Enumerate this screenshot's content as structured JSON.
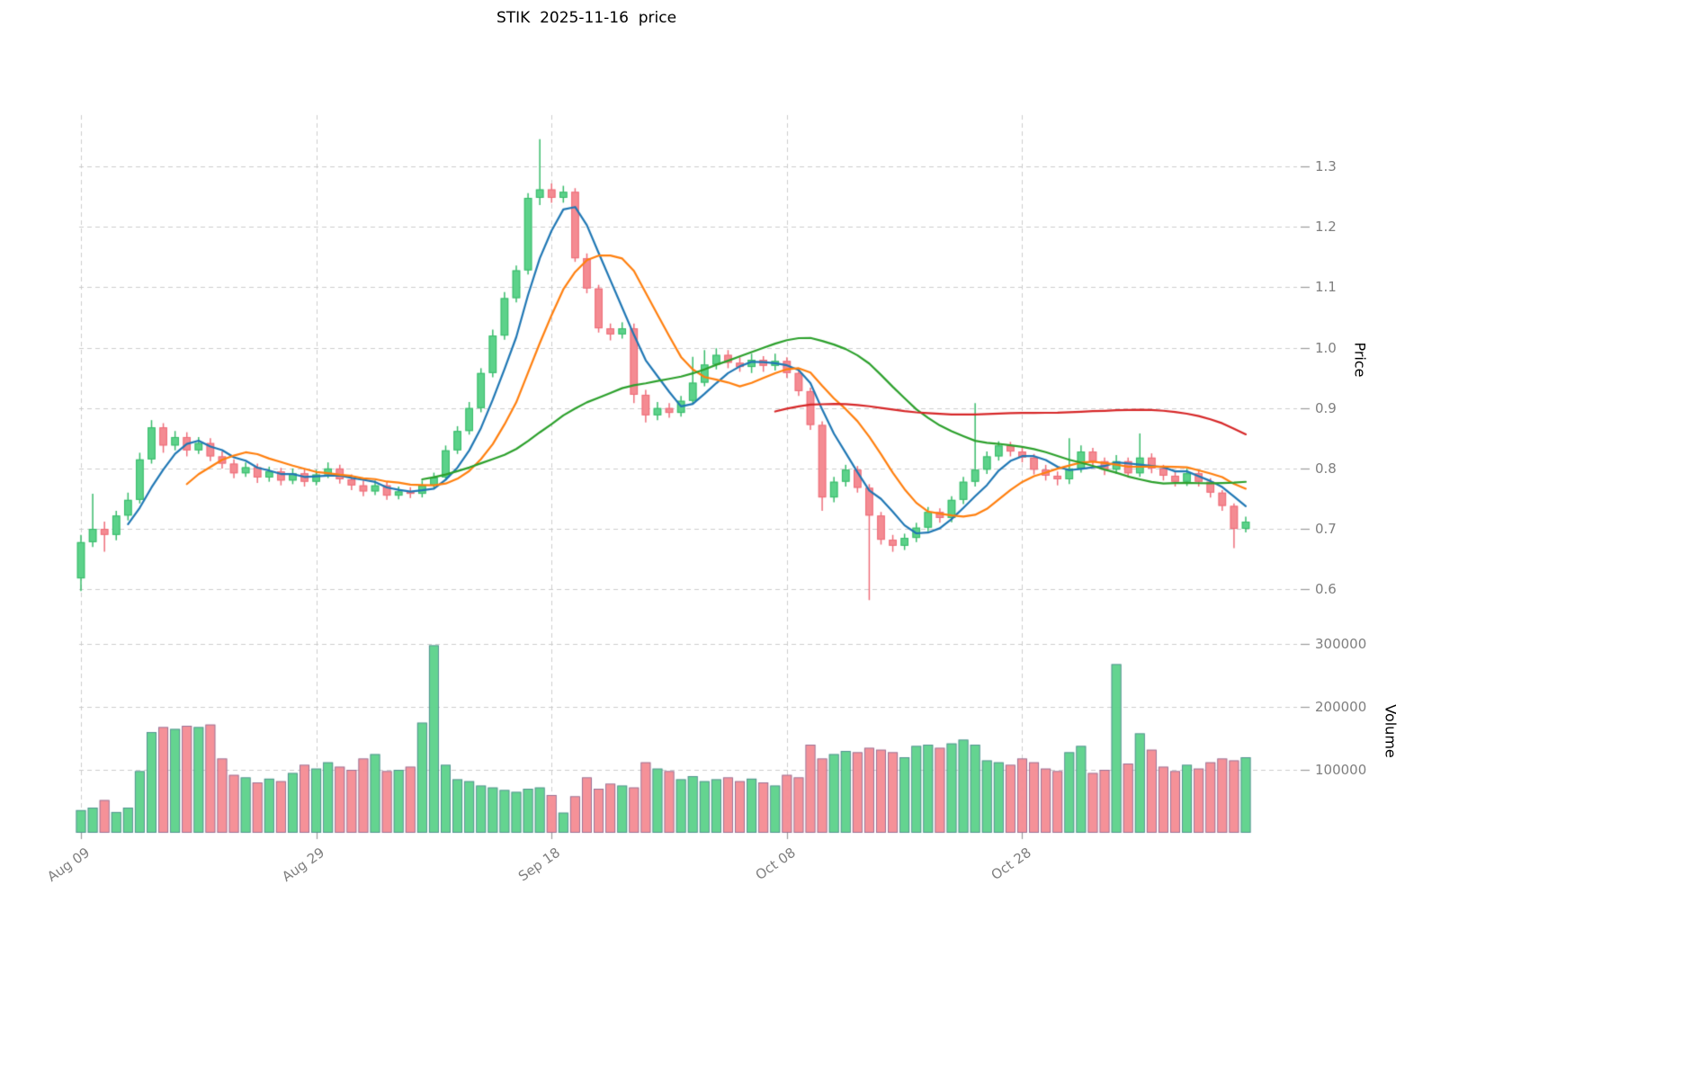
{
  "title": "STIK  2025-11-16  price",
  "axes": {
    "price_label": "Price",
    "volume_label": "Volume",
    "price_ticks": [
      "0.6",
      "0.7",
      "0.8",
      "0.9",
      "1.0",
      "1.1",
      "1.2",
      "1.3"
    ],
    "price_tick_values": [
      0.6,
      0.7,
      0.8,
      0.9,
      1.0,
      1.1,
      1.2,
      1.3
    ],
    "volume_ticks": [
      "100000",
      "200000",
      "300000"
    ],
    "volume_tick_values": [
      100000,
      200000,
      300000
    ],
    "x_ticks": [
      "Aug 09",
      "Aug 29",
      "Sep 18",
      "Oct 08",
      "Oct 28"
    ],
    "x_tick_days": [
      0,
      20,
      40,
      60,
      80
    ]
  },
  "chart_data": {
    "type": "candlestick",
    "panels": [
      "price_with_moving_averages",
      "volume"
    ],
    "dates": {
      "start": "2025-08-09",
      "end": "2025-11-16",
      "freq": "daily",
      "count": 100
    },
    "open": [
      0.618,
      0.678,
      0.7,
      0.69,
      0.722,
      0.748,
      0.815,
      0.868,
      0.838,
      0.852,
      0.83,
      0.842,
      0.82,
      0.808,
      0.792,
      0.802,
      0.785,
      0.795,
      0.78,
      0.792,
      0.778,
      0.79,
      0.8,
      0.782,
      0.772,
      0.762,
      0.772,
      0.755,
      0.762,
      0.758,
      0.772,
      0.785,
      0.83,
      0.862,
      0.9,
      0.958,
      1.02,
      1.082,
      1.128,
      1.248,
      1.262,
      1.248,
      1.258,
      1.148,
      1.098,
      1.032,
      1.022,
      1.032,
      0.922,
      0.888,
      0.9,
      0.892,
      0.912,
      0.942,
      0.972,
      0.988,
      0.975,
      0.968,
      0.98,
      0.97,
      0.978,
      0.958,
      0.928,
      0.872,
      0.752,
      0.778,
      0.798,
      0.768,
      0.722,
      0.682,
      0.672,
      0.685,
      0.702,
      0.728,
      0.718,
      0.748,
      0.778,
      0.798,
      0.82,
      0.838,
      0.828,
      0.818,
      0.798,
      0.788,
      0.782,
      0.8,
      0.828,
      0.812,
      0.798,
      0.812,
      0.792,
      0.818,
      0.8,
      0.788,
      0.778,
      0.792,
      0.778,
      0.76,
      0.738,
      0.7
    ],
    "high": [
      0.69,
      0.758,
      0.712,
      0.73,
      0.76,
      0.826,
      0.88,
      0.875,
      0.862,
      0.86,
      0.852,
      0.85,
      0.828,
      0.815,
      0.81,
      0.808,
      0.803,
      0.801,
      0.8,
      0.799,
      0.798,
      0.81,
      0.806,
      0.79,
      0.78,
      0.78,
      0.779,
      0.77,
      0.769,
      0.78,
      0.793,
      0.838,
      0.87,
      0.91,
      0.966,
      1.03,
      1.092,
      1.136,
      1.256,
      1.345,
      1.272,
      1.268,
      1.264,
      1.156,
      1.104,
      1.04,
      1.042,
      1.04,
      0.93,
      0.91,
      0.908,
      0.92,
      0.985,
      0.996,
      0.999,
      0.996,
      0.984,
      0.99,
      0.986,
      0.99,
      0.984,
      0.964,
      0.934,
      0.878,
      0.786,
      0.806,
      0.804,
      0.774,
      0.728,
      0.69,
      0.692,
      0.71,
      0.736,
      0.734,
      0.754,
      0.786,
      0.908,
      0.828,
      0.845,
      0.844,
      0.836,
      0.824,
      0.806,
      0.795,
      0.85,
      0.838,
      0.834,
      0.818,
      0.822,
      0.818,
      0.858,
      0.825,
      0.806,
      0.794,
      0.8,
      0.796,
      0.784,
      0.764,
      0.742,
      0.72
    ],
    "low": [
      0.597,
      0.67,
      0.662,
      0.681,
      0.714,
      0.742,
      0.808,
      0.826,
      0.83,
      0.82,
      0.824,
      0.812,
      0.8,
      0.784,
      0.786,
      0.776,
      0.778,
      0.772,
      0.774,
      0.77,
      0.772,
      0.784,
      0.775,
      0.764,
      0.754,
      0.756,
      0.748,
      0.749,
      0.751,
      0.752,
      0.766,
      0.78,
      0.824,
      0.856,
      0.893,
      0.951,
      1.013,
      1.075,
      1.121,
      1.236,
      1.24,
      1.24,
      1.142,
      1.09,
      1.025,
      1.012,
      1.015,
      0.908,
      0.876,
      0.88,
      0.884,
      0.886,
      0.906,
      0.936,
      0.964,
      0.966,
      0.96,
      0.958,
      0.96,
      0.962,
      0.95,
      0.92,
      0.864,
      0.73,
      0.744,
      0.77,
      0.76,
      0.582,
      0.674,
      0.662,
      0.665,
      0.678,
      0.696,
      0.71,
      0.711,
      0.741,
      0.77,
      0.791,
      0.813,
      0.82,
      0.81,
      0.79,
      0.78,
      0.772,
      0.774,
      0.793,
      0.804,
      0.789,
      0.791,
      0.785,
      0.786,
      0.792,
      0.78,
      0.77,
      0.771,
      0.77,
      0.752,
      0.73,
      0.668,
      0.694
    ],
    "close": [
      0.678,
      0.7,
      0.69,
      0.722,
      0.748,
      0.815,
      0.868,
      0.838,
      0.852,
      0.83,
      0.842,
      0.82,
      0.808,
      0.792,
      0.802,
      0.785,
      0.795,
      0.78,
      0.792,
      0.778,
      0.79,
      0.8,
      0.782,
      0.772,
      0.762,
      0.772,
      0.755,
      0.762,
      0.758,
      0.772,
      0.785,
      0.83,
      0.862,
      0.9,
      0.958,
      1.02,
      1.082,
      1.128,
      1.248,
      1.262,
      1.248,
      1.258,
      1.148,
      1.098,
      1.032,
      1.022,
      1.032,
      0.922,
      0.888,
      0.9,
      0.892,
      0.912,
      0.942,
      0.972,
      0.988,
      0.975,
      0.968,
      0.98,
      0.97,
      0.978,
      0.958,
      0.928,
      0.872,
      0.752,
      0.778,
      0.798,
      0.768,
      0.722,
      0.682,
      0.672,
      0.685,
      0.702,
      0.728,
      0.718,
      0.748,
      0.778,
      0.798,
      0.82,
      0.838,
      0.828,
      0.818,
      0.798,
      0.788,
      0.782,
      0.8,
      0.828,
      0.812,
      0.798,
      0.812,
      0.792,
      0.818,
      0.8,
      0.788,
      0.778,
      0.792,
      0.778,
      0.76,
      0.738,
      0.7,
      0.712
    ],
    "volume": [
      36000,
      40000,
      52000,
      33000,
      40000,
      98000,
      160000,
      168000,
      165000,
      170000,
      168000,
      172000,
      118000,
      92000,
      88000,
      80000,
      86000,
      82000,
      95000,
      108000,
      102000,
      112000,
      105000,
      100000,
      118000,
      125000,
      98000,
      100000,
      105000,
      175000,
      298000,
      108000,
      85000,
      82000,
      75000,
      72000,
      68000,
      65000,
      70000,
      72000,
      60000,
      32000,
      58000,
      88000,
      70000,
      78000,
      75000,
      72000,
      112000,
      102000,
      98000,
      85000,
      90000,
      82000,
      85000,
      88000,
      82000,
      86000,
      80000,
      75000,
      92000,
      88000,
      140000,
      118000,
      125000,
      130000,
      128000,
      135000,
      132000,
      128000,
      120000,
      138000,
      140000,
      135000,
      142000,
      148000,
      140000,
      115000,
      112000,
      108000,
      118000,
      112000,
      102000,
      98000,
      128000,
      138000,
      95000,
      100000,
      268000,
      110000,
      158000,
      132000,
      105000,
      98000,
      108000,
      102000,
      112000,
      118000,
      115000,
      120000
    ],
    "overlays": [
      {
        "name": "SMA5",
        "window": 5,
        "color": "#1f77b4"
      },
      {
        "name": "SMA10",
        "window": 10,
        "color": "#ff7f0e"
      },
      {
        "name": "SMA30",
        "window": 30,
        "color": "#2ca02c"
      },
      {
        "name": "SMA60",
        "window": 60,
        "color": "#d62728"
      }
    ],
    "colors": {
      "up_fill": "#5cd28a",
      "up_edge": "#38bb6a",
      "down_fill": "#f48b92",
      "down_edge": "#ee6d79",
      "volume_edge": "#3d4f8f",
      "grid": "#cccccc",
      "tick_text": "#7f7f7f"
    },
    "price_axis_range": [
      0.575,
      1.385
    ],
    "volume_axis_max": 323000
  }
}
